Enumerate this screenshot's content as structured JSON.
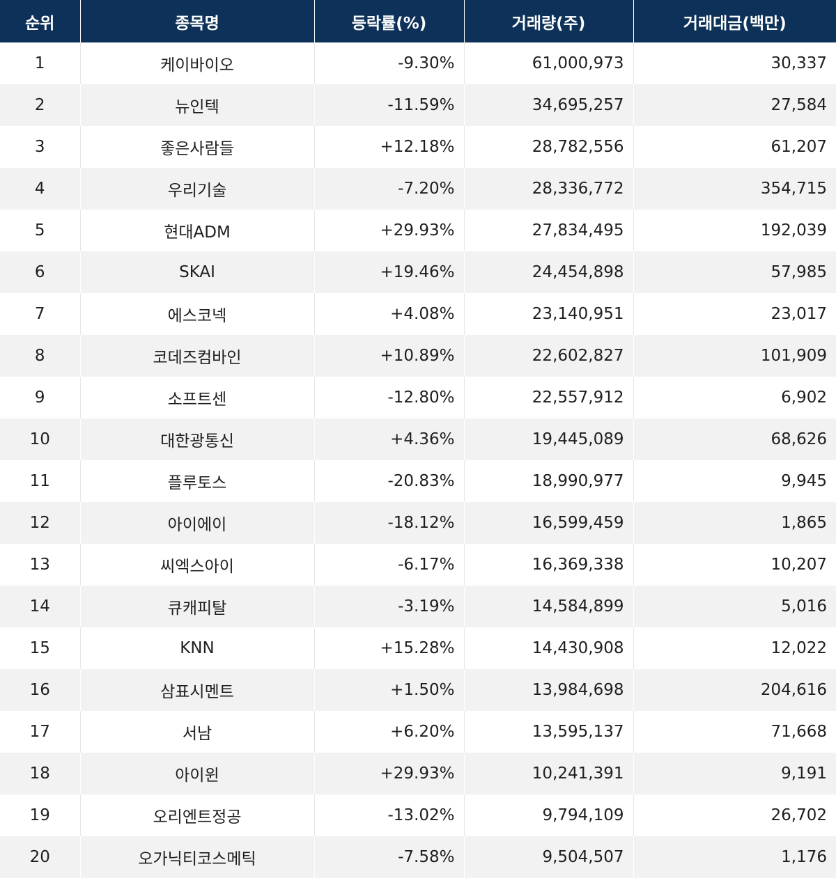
{
  "columns": [
    "순위",
    "종목명",
    "등락률(%)",
    "거래량(주)",
    "거래대금(백만)"
  ],
  "rows": [
    {
      "rank": "1",
      "name": "케이바이오",
      "change": "-9.30%",
      "volume": "61,000,973",
      "amount": "30,337"
    },
    {
      "rank": "2",
      "name": "뉴인텍",
      "change": "-11.59%",
      "volume": "34,695,257",
      "amount": "27,584"
    },
    {
      "rank": "3",
      "name": "좋은사람들",
      "change": "+12.18%",
      "volume": "28,782,556",
      "amount": "61,207"
    },
    {
      "rank": "4",
      "name": "우리기술",
      "change": "-7.20%",
      "volume": "28,336,772",
      "amount": "354,715"
    },
    {
      "rank": "5",
      "name": "현대ADM",
      "change": "+29.93%",
      "volume": "27,834,495",
      "amount": "192,039"
    },
    {
      "rank": "6",
      "name": "SKAI",
      "change": "+19.46%",
      "volume": "24,454,898",
      "amount": "57,985"
    },
    {
      "rank": "7",
      "name": "에스코넥",
      "change": "+4.08%",
      "volume": "23,140,951",
      "amount": "23,017"
    },
    {
      "rank": "8",
      "name": "코데즈컴바인",
      "change": "+10.89%",
      "volume": "22,602,827",
      "amount": "101,909"
    },
    {
      "rank": "9",
      "name": "소프트센",
      "change": "-12.80%",
      "volume": "22,557,912",
      "amount": "6,902"
    },
    {
      "rank": "10",
      "name": "대한광통신",
      "change": "+4.36%",
      "volume": "19,445,089",
      "amount": "68,626"
    },
    {
      "rank": "11",
      "name": "플루토스",
      "change": "-20.83%",
      "volume": "18,990,977",
      "amount": "9,945"
    },
    {
      "rank": "12",
      "name": "아이에이",
      "change": "-18.12%",
      "volume": "16,599,459",
      "amount": "1,865"
    },
    {
      "rank": "13",
      "name": "씨엑스아이",
      "change": "-6.17%",
      "volume": "16,369,338",
      "amount": "10,207"
    },
    {
      "rank": "14",
      "name": "큐캐피탈",
      "change": "-3.19%",
      "volume": "14,584,899",
      "amount": "5,016"
    },
    {
      "rank": "15",
      "name": "KNN",
      "change": "+15.28%",
      "volume": "14,430,908",
      "amount": "12,022"
    },
    {
      "rank": "16",
      "name": "삼표시멘트",
      "change": "+1.50%",
      "volume": "13,984,698",
      "amount": "204,616"
    },
    {
      "rank": "17",
      "name": "서남",
      "change": "+6.20%",
      "volume": "13,595,137",
      "amount": "71,668"
    },
    {
      "rank": "18",
      "name": "아이윈",
      "change": "+29.93%",
      "volume": "10,241,391",
      "amount": "9,191"
    },
    {
      "rank": "19",
      "name": "오리엔트정공",
      "change": "-13.02%",
      "volume": "9,794,109",
      "amount": "26,702"
    },
    {
      "rank": "20",
      "name": "오가닉티코스메틱",
      "change": "-7.58%",
      "volume": "9,504,507",
      "amount": "1,176"
    }
  ]
}
